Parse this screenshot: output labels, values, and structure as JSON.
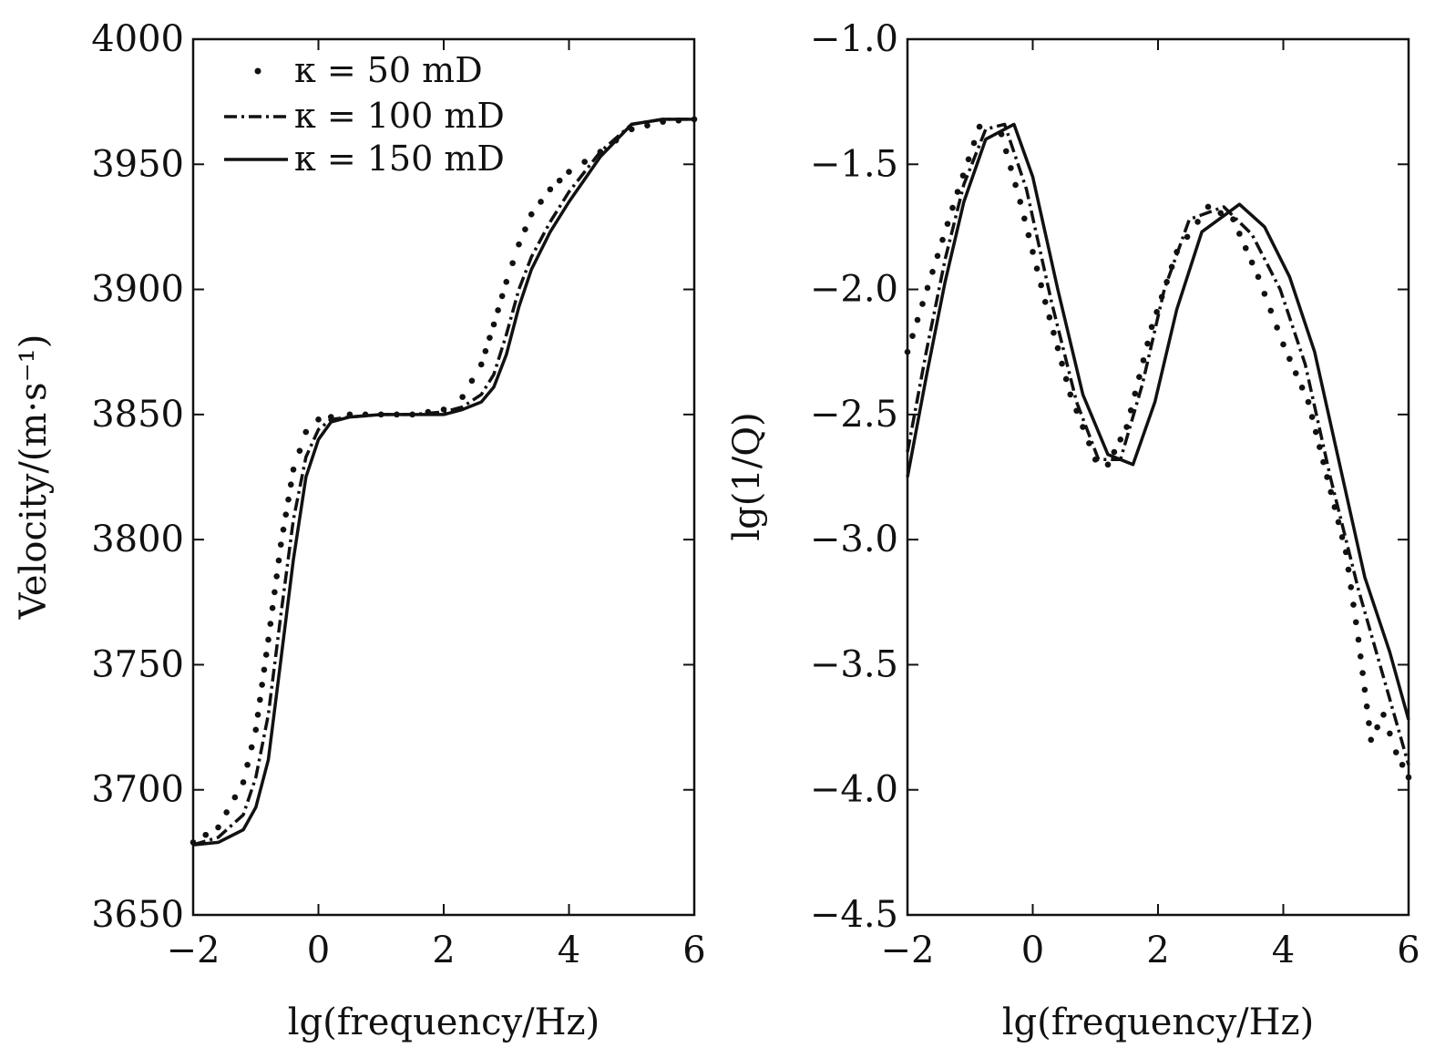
{
  "chart_data": [
    {
      "type": "line",
      "xlabel": "lg(frequency/Hz)",
      "ylabel": "Velocity/(m·s⁻¹)",
      "xlim": [
        -2,
        6
      ],
      "ylim": [
        3650,
        4000
      ],
      "xticks": [
        "−2",
        "0",
        "2",
        "4",
        "6"
      ],
      "xtick_values": [
        -2,
        0,
        2,
        4,
        6
      ],
      "yticks": [
        "3650",
        "3700",
        "3750",
        "3800",
        "3850",
        "3900",
        "3950",
        "4000"
      ],
      "ytick_values": [
        3650,
        3700,
        3750,
        3800,
        3850,
        3900,
        3950,
        4000
      ],
      "grid": false,
      "legend_position": "top-left",
      "x": [
        -2.0,
        -1.6,
        -1.2,
        -1.0,
        -0.8,
        -0.6,
        -0.4,
        -0.2,
        0.0,
        0.2,
        0.5,
        1.0,
        1.5,
        2.0,
        2.3,
        2.6,
        2.8,
        3.0,
        3.2,
        3.4,
        3.7,
        4.0,
        4.5,
        5.0,
        5.5,
        6.0
      ],
      "series": [
        {
          "name": "κ = 50 mD",
          "style": "dotted",
          "values": [
            3679,
            3685,
            3703,
            3724,
            3760,
            3798,
            3828,
            3843,
            3848,
            3849,
            3850,
            3850,
            3850,
            3852,
            3857,
            3870,
            3886,
            3903,
            3918,
            3930,
            3940,
            3947,
            3955,
            3964,
            3967,
            3968
          ]
        },
        {
          "name": "κ = 100 mD",
          "style": "dash-dot",
          "values": [
            3678,
            3681,
            3690,
            3705,
            3730,
            3770,
            3808,
            3833,
            3844,
            3848,
            3849,
            3850,
            3850,
            3851,
            3853,
            3858,
            3866,
            3882,
            3900,
            3913,
            3927,
            3939,
            3955,
            3966,
            3968,
            3968
          ]
        },
        {
          "name": "κ = 150 mD",
          "style": "solid",
          "values": [
            3678,
            3679,
            3684,
            3693,
            3712,
            3752,
            3792,
            3825,
            3840,
            3847,
            3849,
            3850,
            3850,
            3850,
            3852,
            3855,
            3861,
            3874,
            3893,
            3908,
            3923,
            3935,
            3953,
            3966,
            3968,
            3968
          ]
        }
      ]
    },
    {
      "type": "line",
      "xlabel": "lg(frequency/Hz)",
      "ylabel": "lg(1/Q)",
      "xlim": [
        -2,
        6
      ],
      "ylim": [
        -4.5,
        -1.0
      ],
      "xticks": [
        "−2",
        "0",
        "2",
        "4",
        "6"
      ],
      "xtick_values": [
        -2,
        0,
        2,
        4,
        6
      ],
      "yticks": [
        "−1.0",
        "−1.5",
        "−2.0",
        "−2.5",
        "−3.0",
        "−3.5",
        "−4.0",
        "−4.5"
      ],
      "ytick_values": [
        -1.0,
        -1.5,
        -2.0,
        -2.5,
        -3.0,
        -3.5,
        -4.0,
        -4.5
      ],
      "grid": false,
      "series": [
        {
          "name": "κ = 50 mD",
          "style": "dotted",
          "x": [
            -2.0,
            -1.6,
            -1.2,
            -0.85,
            -0.5,
            -0.2,
            0.2,
            0.6,
            1.0,
            1.2,
            1.5,
            1.9,
            2.3,
            2.8,
            3.2,
            3.6,
            4.0,
            4.4,
            4.7,
            5.0,
            5.2,
            5.4,
            5.6,
            5.8,
            6.0
          ],
          "values": [
            -2.25,
            -1.93,
            -1.61,
            -1.35,
            -1.38,
            -1.65,
            -2.05,
            -2.42,
            -2.68,
            -2.7,
            -2.55,
            -2.15,
            -1.85,
            -1.67,
            -1.72,
            -1.95,
            -2.22,
            -2.45,
            -2.75,
            -3.05,
            -3.4,
            -3.8,
            -3.7,
            -3.85,
            -3.95
          ]
        },
        {
          "name": "κ = 100 mD",
          "style": "dash-dot",
          "values": [
            -2.65,
            -2.25,
            -1.88,
            -1.58,
            -1.36,
            -1.34,
            -1.6,
            -2.05,
            -2.45,
            -2.68,
            -2.68,
            -2.38,
            -2.0,
            -1.72,
            -1.67,
            -1.78,
            -2.0,
            -2.3,
            -2.75,
            -3.2,
            -3.55,
            -3.9
          ],
          "x": [
            -2.0,
            -1.7,
            -1.4,
            -1.1,
            -0.75,
            -0.45,
            -0.1,
            0.3,
            0.7,
            1.05,
            1.4,
            1.75,
            2.1,
            2.5,
            3.05,
            3.5,
            3.95,
            4.35,
            4.75,
            5.2,
            5.6,
            6.0
          ]
        },
        {
          "name": "κ = 150 mD",
          "style": "solid",
          "values": [
            -2.75,
            -2.35,
            -1.97,
            -1.65,
            -1.4,
            -1.34,
            -1.55,
            -2.0,
            -2.42,
            -2.66,
            -2.7,
            -2.45,
            -2.08,
            -1.77,
            -1.66,
            -1.75,
            -1.95,
            -2.25,
            -2.7,
            -3.15,
            -3.45,
            -3.72
          ],
          "x": [
            -2.0,
            -1.7,
            -1.4,
            -1.1,
            -0.75,
            -0.3,
            0.0,
            0.4,
            0.8,
            1.2,
            1.6,
            1.95,
            2.3,
            2.7,
            3.3,
            3.7,
            4.1,
            4.5,
            4.9,
            5.3,
            5.7,
            6.0
          ]
        }
      ]
    }
  ]
}
